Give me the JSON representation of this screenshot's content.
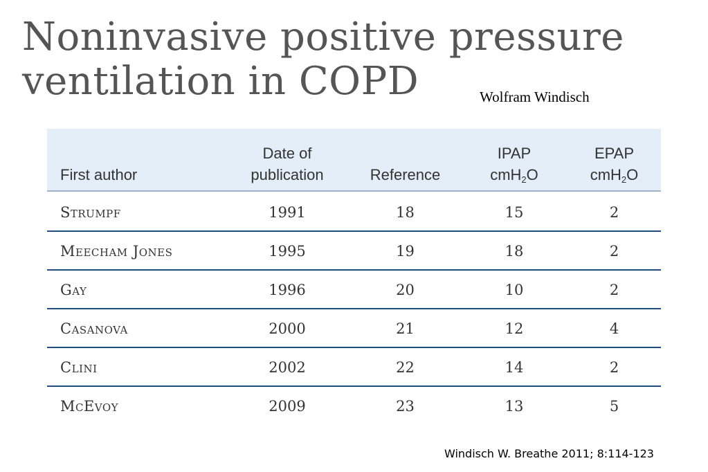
{
  "title": {
    "line1": "Noninvasive positive pressure",
    "line2": "ventilation in COPD"
  },
  "author_credit": "Wolfram Windisch",
  "table": {
    "headers": {
      "first_author": "First author",
      "date_line1": "Date of",
      "date_line2": "publication",
      "reference": "Reference",
      "ipap_line1": "IPAP",
      "ipap_unit_prefix": "cmH",
      "ipap_unit_sub": "2",
      "ipap_unit_suffix": "O",
      "epap_line1": "EPAP",
      "epap_unit_prefix": "cmH",
      "epap_unit_sub": "2",
      "epap_unit_suffix": "O"
    },
    "rows": [
      {
        "author": "Strumpf",
        "date": "1991",
        "reference": "18",
        "ipap": "15",
        "epap": "2"
      },
      {
        "author": "Meecham Jones",
        "date": "1995",
        "reference": "19",
        "ipap": "18",
        "epap": "2"
      },
      {
        "author": "Gay",
        "date": "1996",
        "reference": "20",
        "ipap": "10",
        "epap": "2"
      },
      {
        "author": "Casanova",
        "date": "2000",
        "reference": "21",
        "ipap": "12",
        "epap": "4"
      },
      {
        "author": "Clini",
        "date": "2002",
        "reference": "22",
        "ipap": "14",
        "epap": "2"
      },
      {
        "author": "McEvoy",
        "date": "2009",
        "reference": "23",
        "ipap": "13",
        "epap": "5"
      }
    ]
  },
  "citation": "Windisch W. Breathe 2011; 8:114-123"
}
